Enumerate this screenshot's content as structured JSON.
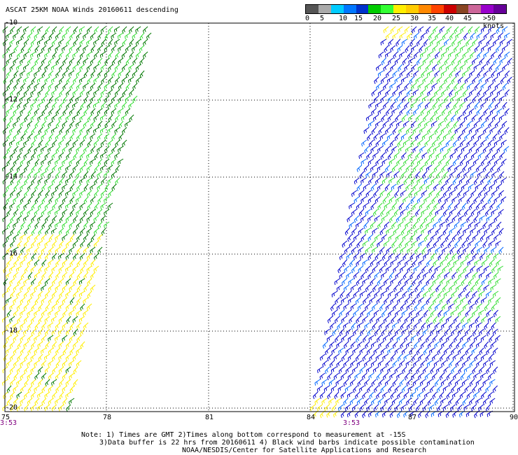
{
  "title": "ASCAT 25KM NOAA Winds 20160611 descending",
  "colorbar": {
    "colors": [
      "#555555",
      "#aaaaaa",
      "#00ccff",
      "#0077ff",
      "#0033cc",
      "#00cc00",
      "#33ff33",
      "#ffee00",
      "#ffcc00",
      "#ff8800",
      "#ff4400",
      "#cc0000",
      "#884422",
      "#cc6699",
      "#9900cc",
      "#660099"
    ],
    "labels": [
      "0",
      "5",
      "10",
      "15",
      "20",
      "25",
      "30",
      "35",
      "40",
      "45",
      ">50 knots"
    ]
  },
  "axes": {
    "y_labels": [
      "-10",
      "-12",
      "-14",
      "-16",
      "-18",
      "-20"
    ],
    "x_labels": [
      "75",
      "78",
      "81",
      "84",
      "87",
      "90"
    ]
  },
  "times": [
    "3:53",
    "3:53"
  ],
  "barb_colors": {
    "green_dark": "#007700",
    "green_light": "#33dd33",
    "yellow": "#ffee00",
    "blue": "#0000cc",
    "blue_mid": "#0066ff"
  },
  "notes": [
    "Note: 1) Times are GMT 2)Times along bottom correspond to measurement at -15S",
    "3)Data buffer is 22 hrs from 20160611 4) Black wind barbs indicate possible contamination",
    "NOAA/NESDIS/Center for Satellite Applications and Research"
  ]
}
